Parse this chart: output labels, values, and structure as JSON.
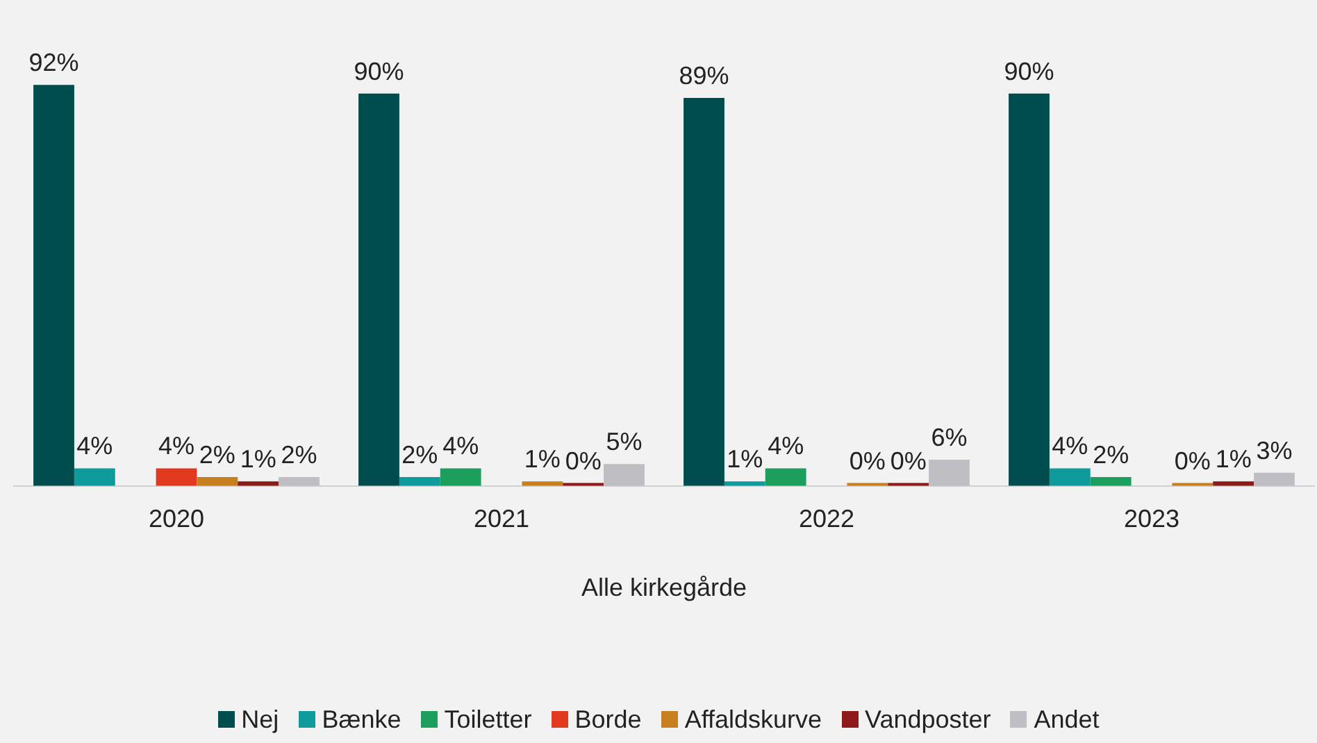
{
  "chart_data": {
    "type": "bar",
    "categories": [
      "2020",
      "2021",
      "2022",
      "2023"
    ],
    "xlabel": "Alle kirkegårde",
    "legend": "bottom",
    "grid": false,
    "series": [
      {
        "name": "Nej",
        "color": "#004d4d",
        "values": [
          92,
          90,
          89,
          90
        ],
        "value_labels": [
          "92%",
          "90%",
          "89%",
          "90%"
        ]
      },
      {
        "name": "Bænke",
        "color": "#0f9b9b",
        "values": [
          4,
          2,
          1,
          4
        ],
        "value_labels": [
          "4%",
          "2%",
          "1%",
          "4%"
        ]
      },
      {
        "name": "Toiletter",
        "color": "#1c9e5c",
        "values": [
          null,
          4,
          4,
          2
        ],
        "value_labels": [
          null,
          "4%",
          "4%",
          "2%"
        ]
      },
      {
        "name": "Borde",
        "color": "#e0391d",
        "values": [
          4,
          null,
          null,
          null
        ],
        "value_labels": [
          "4%",
          null,
          null,
          null
        ]
      },
      {
        "name": "Affaldskurve",
        "color": "#c8801f",
        "values": [
          2,
          1,
          0,
          0
        ],
        "value_labels": [
          "2%",
          "1%",
          "0%",
          "0%"
        ]
      },
      {
        "name": "Vandposter",
        "color": "#8c1a1a",
        "values": [
          1,
          0,
          0,
          1
        ],
        "value_labels": [
          "1%",
          "0%",
          "0%",
          "1%"
        ]
      },
      {
        "name": "Andet",
        "color": "#bfbfc3",
        "values": [
          2,
          5,
          6,
          3
        ],
        "value_labels": [
          "2%",
          "5%",
          "6%",
          "3%"
        ]
      }
    ]
  }
}
